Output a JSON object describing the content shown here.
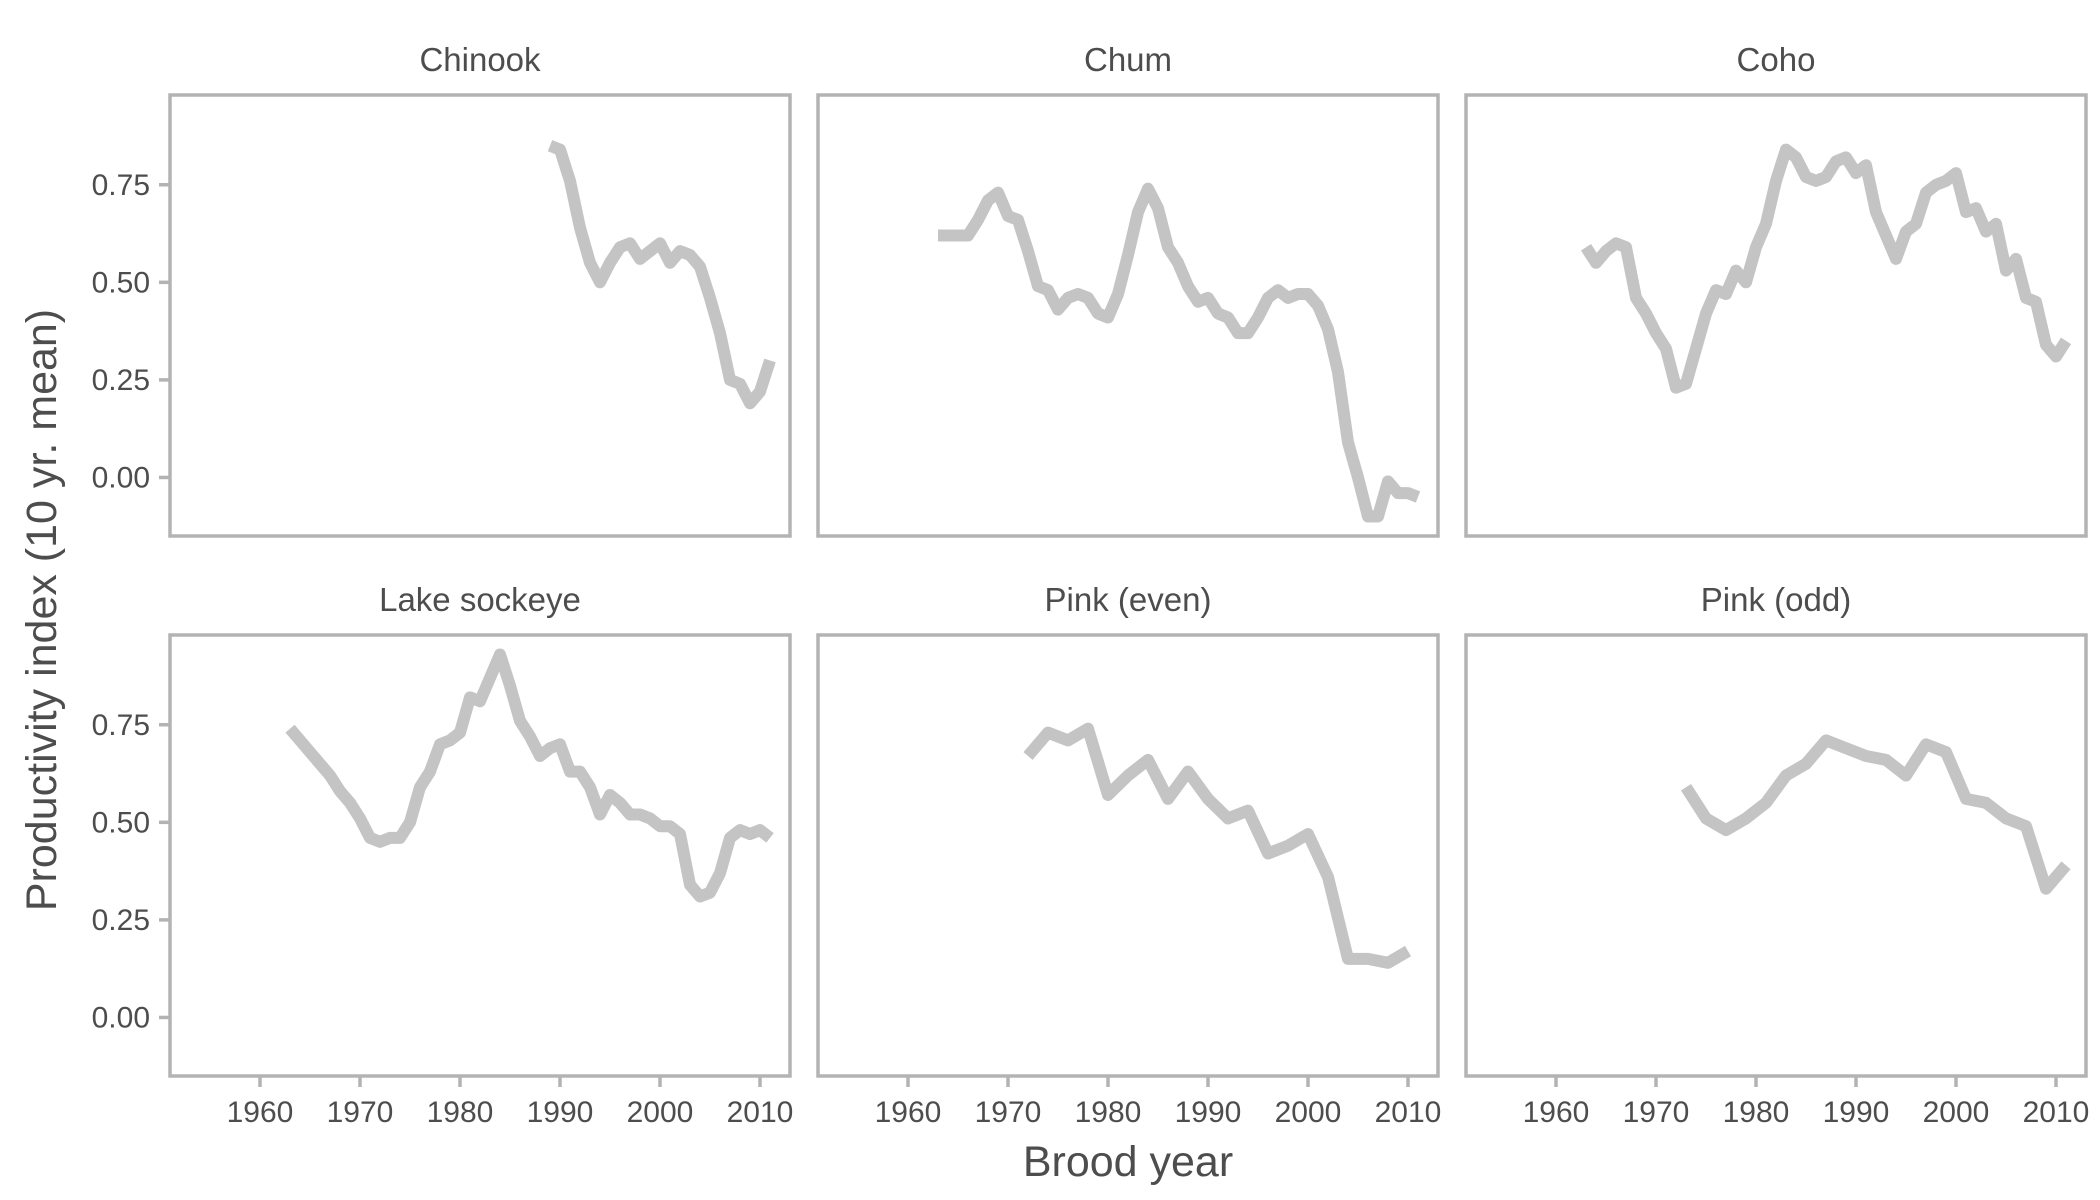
{
  "chart_data": {
    "type": "line",
    "layout": "facet-grid-2x3",
    "xlabel": "Brood year",
    "ylabel": "Productivity index (10 yr. mean)",
    "xlim": [
      1951,
      2013
    ],
    "ylim": [
      -0.15,
      0.98
    ],
    "x_ticks": [
      1960,
      1970,
      1980,
      1990,
      2000,
      2010
    ],
    "y_ticks": [
      0.0,
      0.25,
      0.5,
      0.75
    ],
    "y_tick_labels": [
      "0.00",
      "0.25",
      "0.50",
      "0.75"
    ],
    "grid": false,
    "line_color": "#c4c4c4",
    "frame_color": "#b3b3b3",
    "panels": [
      {
        "title": "Chinook",
        "x": [
          1989,
          1990,
          1991,
          1992,
          1993,
          1994,
          1995,
          1996,
          1997,
          1998,
          1999,
          2000,
          2001,
          2002,
          2003,
          2004,
          2005,
          2006,
          2007,
          2008,
          2009,
          2010,
          2011
        ],
        "y": [
          0.85,
          0.84,
          0.76,
          0.64,
          0.55,
          0.5,
          0.55,
          0.59,
          0.6,
          0.56,
          0.58,
          0.6,
          0.55,
          0.58,
          0.57,
          0.54,
          0.46,
          0.37,
          0.25,
          0.24,
          0.19,
          0.22,
          0.3
        ]
      },
      {
        "title": "Chum",
        "x": [
          1963,
          1964,
          1965,
          1966,
          1967,
          1968,
          1969,
          1970,
          1971,
          1972,
          1973,
          1974,
          1975,
          1976,
          1977,
          1978,
          1979,
          1980,
          1981,
          1982,
          1983,
          1984,
          1985,
          1986,
          1987,
          1988,
          1989,
          1990,
          1991,
          1992,
          1993,
          1994,
          1995,
          1996,
          1997,
          1998,
          1999,
          2000,
          2001,
          2002,
          2003,
          2004,
          2005,
          2006,
          2007,
          2008,
          2009,
          2010,
          2011
        ],
        "y": [
          0.62,
          0.62,
          0.62,
          0.62,
          0.66,
          0.71,
          0.73,
          0.67,
          0.66,
          0.58,
          0.49,
          0.48,
          0.43,
          0.46,
          0.47,
          0.46,
          0.42,
          0.41,
          0.47,
          0.57,
          0.68,
          0.74,
          0.69,
          0.59,
          0.55,
          0.49,
          0.45,
          0.46,
          0.42,
          0.41,
          0.37,
          0.37,
          0.41,
          0.46,
          0.48,
          0.46,
          0.47,
          0.47,
          0.44,
          0.38,
          0.27,
          0.09,
          0.0,
          -0.1,
          -0.1,
          -0.01,
          -0.04,
          -0.04,
          -0.05
        ]
      },
      {
        "title": "Coho",
        "x": [
          1963,
          1964,
          1965,
          1966,
          1967,
          1968,
          1969,
          1970,
          1971,
          1972,
          1973,
          1974,
          1975,
          1976,
          1977,
          1978,
          1979,
          1980,
          1981,
          1982,
          1983,
          1984,
          1985,
          1986,
          1987,
          1988,
          1989,
          1990,
          1991,
          1992,
          1993,
          1994,
          1995,
          1996,
          1997,
          1998,
          1999,
          2000,
          2001,
          2002,
          2003,
          2004,
          2005,
          2006,
          2007,
          2008,
          2009,
          2010,
          2011
        ],
        "y": [
          0.59,
          0.55,
          0.58,
          0.6,
          0.59,
          0.46,
          0.42,
          0.37,
          0.33,
          0.23,
          0.24,
          0.33,
          0.42,
          0.48,
          0.47,
          0.53,
          0.5,
          0.59,
          0.65,
          0.76,
          0.84,
          0.82,
          0.77,
          0.76,
          0.77,
          0.81,
          0.82,
          0.78,
          0.8,
          0.68,
          0.62,
          0.56,
          0.63,
          0.65,
          0.73,
          0.75,
          0.76,
          0.78,
          0.68,
          0.69,
          0.63,
          0.65,
          0.53,
          0.56,
          0.46,
          0.45,
          0.34,
          0.31,
          0.35
        ]
      },
      {
        "title": "Lake sockeye",
        "x": [
          1963,
          1964,
          1965,
          1966,
          1967,
          1968,
          1969,
          1970,
          1971,
          1972,
          1973,
          1974,
          1975,
          1976,
          1977,
          1978,
          1979,
          1980,
          1981,
          1982,
          1983,
          1984,
          1985,
          1986,
          1987,
          1988,
          1989,
          1990,
          1991,
          1992,
          1993,
          1994,
          1995,
          1996,
          1997,
          1998,
          1999,
          2000,
          2001,
          2002,
          2003,
          2004,
          2005,
          2006,
          2007,
          2008,
          2009,
          2010,
          2011
        ],
        "y": [
          0.74,
          0.71,
          0.68,
          0.65,
          0.62,
          0.58,
          0.55,
          0.51,
          0.46,
          0.45,
          0.46,
          0.46,
          0.5,
          0.59,
          0.63,
          0.7,
          0.71,
          0.73,
          0.82,
          0.81,
          0.87,
          0.93,
          0.85,
          0.76,
          0.72,
          0.67,
          0.69,
          0.7,
          0.63,
          0.63,
          0.59,
          0.52,
          0.57,
          0.55,
          0.52,
          0.52,
          0.51,
          0.49,
          0.49,
          0.47,
          0.34,
          0.31,
          0.32,
          0.37,
          0.46,
          0.48,
          0.47,
          0.48,
          0.46
        ]
      },
      {
        "title": "Pink (even)",
        "x": [
          1972,
          1974,
          1976,
          1978,
          1980,
          1982,
          1984,
          1986,
          1988,
          1990,
          1992,
          1994,
          1996,
          1998,
          2000,
          2002,
          2004,
          2006,
          2008,
          2010
        ],
        "y": [
          0.67,
          0.73,
          0.71,
          0.74,
          0.57,
          0.62,
          0.66,
          0.56,
          0.63,
          0.56,
          0.51,
          0.53,
          0.42,
          0.44,
          0.47,
          0.36,
          0.15,
          0.15,
          0.14,
          0.17
        ]
      },
      {
        "title": "Pink (odd)",
        "x": [
          1973,
          1975,
          1977,
          1979,
          1981,
          1983,
          1985,
          1987,
          1989,
          1991,
          1993,
          1995,
          1997,
          1999,
          2001,
          2003,
          2005,
          2007,
          2009,
          2011
        ],
        "y": [
          0.59,
          0.51,
          0.48,
          0.51,
          0.55,
          0.62,
          0.65,
          0.71,
          0.69,
          0.67,
          0.66,
          0.62,
          0.7,
          0.68,
          0.56,
          0.55,
          0.51,
          0.49,
          0.33,
          0.39
        ]
      }
    ]
  }
}
